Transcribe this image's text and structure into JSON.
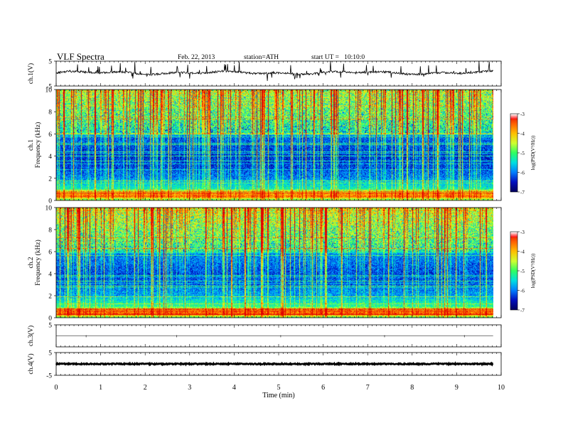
{
  "header": {
    "title": "VLF Spectra",
    "date": "Feb. 22, 2013",
    "station": "station=ATH",
    "start": "start UT =   10:10:0"
  },
  "chart_data": {
    "type": "heatmap",
    "x": {
      "label": "Time (min)",
      "range": [
        0,
        10
      ],
      "ticks": [
        "0",
        "1",
        "2",
        "3",
        "4",
        "5",
        "6",
        "7",
        "8",
        "9",
        "10"
      ],
      "data_end": 9.82
    },
    "panels": [
      {
        "id": "ch1-wave",
        "type": "line",
        "ylabel": "ch.1(V)",
        "ylim": [
          -5,
          5
        ],
        "ticks": [
          "5",
          "-5"
        ],
        "baseline": 0.3,
        "noise_amplitude": 0.4,
        "spikes": "frequent up to ±5"
      },
      {
        "id": "ch1-spec",
        "type": "heatmap",
        "ylabel": "ch.1\nFrequency (kHz)",
        "ylim": [
          0,
          10
        ],
        "ticks": [
          "0",
          "2",
          "4",
          "6",
          "8",
          "10"
        ]
      },
      {
        "id": "ch2-spec",
        "type": "heatmap",
        "ylabel": "ch.2\nFrequency (kHz)",
        "ylim": [
          0,
          10
        ],
        "ticks": [
          "0",
          "2",
          "4",
          "6",
          "8",
          "10"
        ]
      },
      {
        "id": "ch3-wave",
        "type": "line",
        "ylabel": "ch.3(V)",
        "ylim": [
          -5,
          5
        ],
        "ticks": [
          "5",
          ""
        ],
        "baseline": 0.0,
        "noise_amplitude": 0.0
      },
      {
        "id": "ch4-wave",
        "type": "line",
        "ylabel": "ch.4(V)",
        "ylim": [
          -5,
          5
        ],
        "ticks": [
          "5",
          "-5"
        ],
        "baseline": 0.0,
        "noise_amplitude": 0.25
      }
    ],
    "colorbar": {
      "label": "log(PSD(V²/Hz))",
      "range": [
        -7,
        -3
      ],
      "ticks": [
        "-3",
        "-4",
        "-5",
        "-6",
        "-7"
      ],
      "colors": [
        "#000060",
        "#0010c0",
        "#0080ff",
        "#00e0e0",
        "#30ff60",
        "#d0ff30",
        "#ffc000",
        "#ff6000",
        "#e00000",
        "#ffffff"
      ]
    },
    "spectral_profile": {
      "freq_khz": [
        0,
        0.3,
        0.6,
        1.0,
        1.5,
        2.0,
        2.5,
        3.0,
        4.0,
        5.0,
        5.8,
        6.0,
        7.0,
        8.0,
        9.0,
        10.0
      ],
      "log_psd": [
        -5.2,
        -3.6,
        -3.9,
        -5.3,
        -5.6,
        -6.0,
        -6.1,
        -6.3,
        -6.4,
        -6.2,
        -6.1,
        -5.3,
        -5.0,
        -4.8,
        -4.6,
        -4.4
      ]
    }
  }
}
